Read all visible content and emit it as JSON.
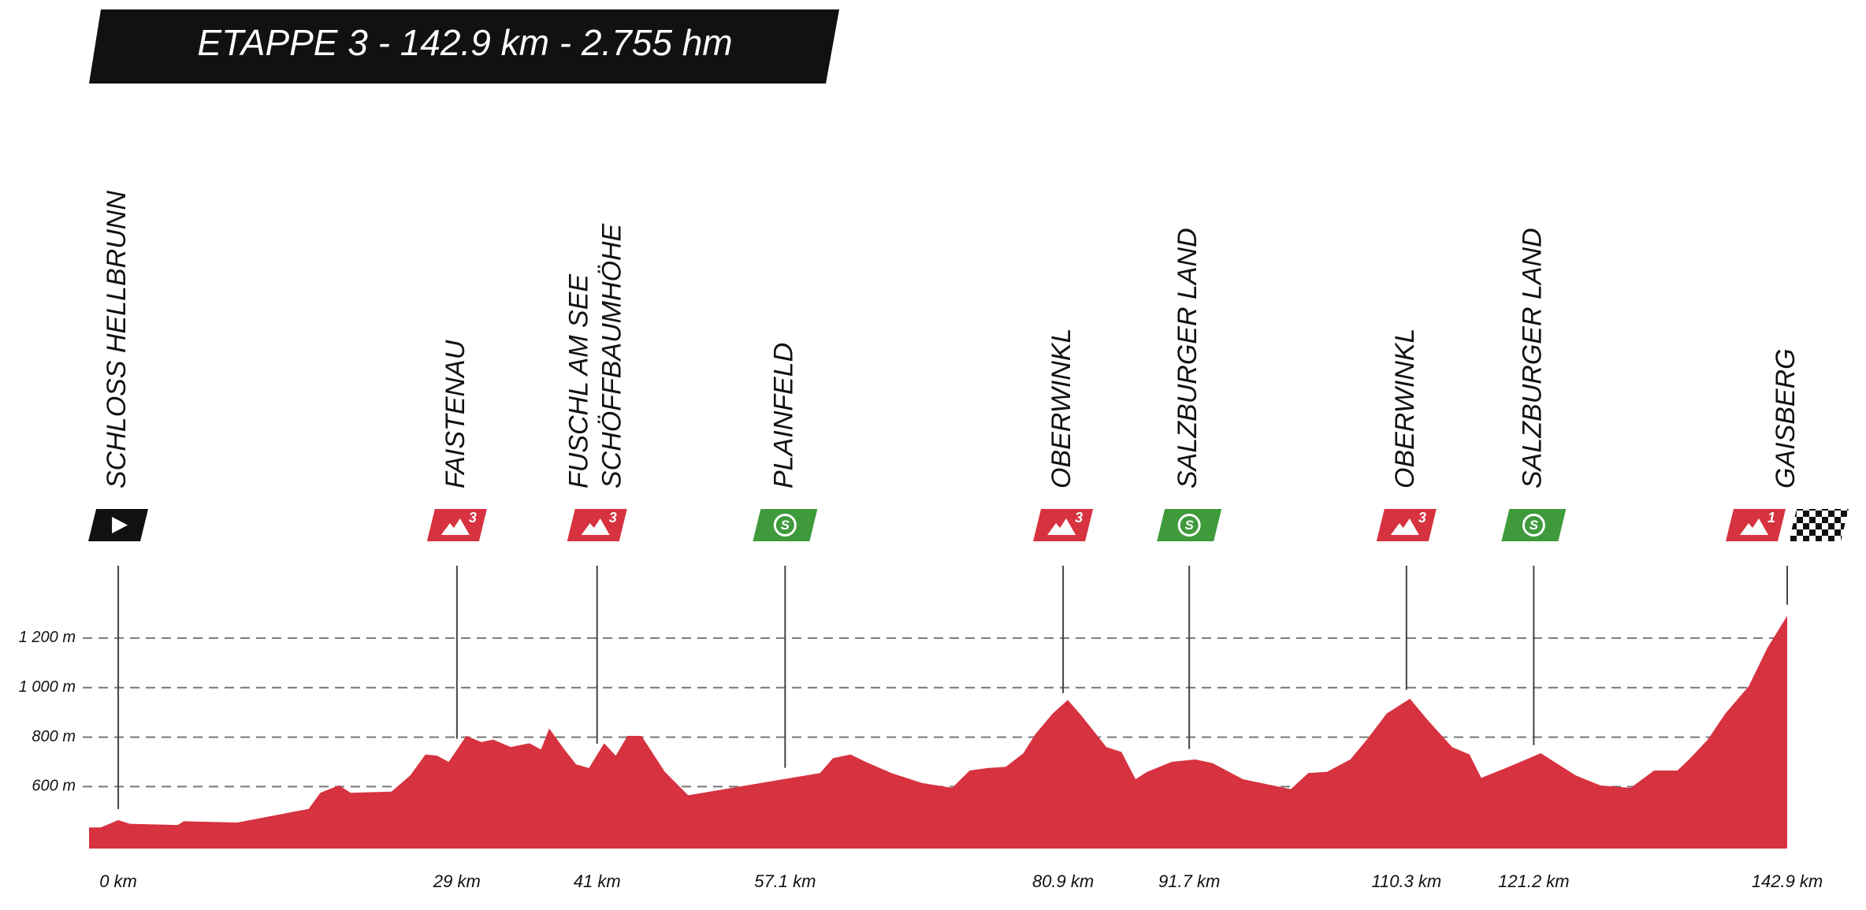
{
  "chart_data": {
    "type": "area",
    "title": "ETAPPE 3 - 142.9 km - 2.755 hm",
    "color": "#d7323f",
    "grid": true,
    "xlim": [
      -2.5,
      142.9
    ],
    "ylim": [
      350,
      1400
    ],
    "yticks": [
      {
        "value": 600,
        "label": "600 m"
      },
      {
        "value": 800,
        "label": "800 m"
      },
      {
        "value": 1000,
        "label": "1 000 m"
      },
      {
        "value": 1200,
        "label": "1 200 m"
      }
    ],
    "x": [
      -2.5,
      -1.5,
      0,
      1,
      5.1,
      5.6,
      10.2,
      16.3,
      17.3,
      18.9,
      19.9,
      23.4,
      25,
      26.3,
      27.3,
      28.3,
      29.8,
      31.1,
      32.1,
      33.6,
      35.2,
      36.2,
      36.9,
      38.2,
      39.2,
      40.3,
      41.6,
      42.6,
      43.6,
      44.8,
      46.8,
      48.8,
      60.1,
      61.2,
      62.7,
      64,
      66.2,
      68.8,
      71.4,
      72.9,
      74.4,
      76,
      77.5,
      78.5,
      80,
      81.3,
      82.5,
      84.6,
      85.9,
      87.1,
      88.1,
      90.2,
      92.2,
      93.7,
      96.3,
      98.3,
      100.4,
      101.9,
      103.5,
      105.5,
      107,
      108.6,
      110.6,
      112.1,
      114.2,
      115.7,
      116.7,
      118.8,
      121.8,
      123.3,
      124.8,
      126.9,
      129.5,
      131.5,
      133.5,
      134.5,
      136.1,
      137.6,
      139.6,
      141.2,
      142.9
    ],
    "values": [
      435,
      435,
      465,
      450,
      445,
      460,
      455,
      510,
      575,
      605,
      575,
      580,
      645,
      730,
      725,
      700,
      805,
      780,
      790,
      760,
      775,
      750,
      835,
      750,
      690,
      675,
      775,
      725,
      805,
      805,
      660,
      565,
      655,
      715,
      730,
      700,
      655,
      615,
      595,
      665,
      675,
      680,
      735,
      810,
      895,
      950,
      885,
      760,
      740,
      630,
      660,
      700,
      710,
      695,
      630,
      610,
      590,
      655,
      660,
      710,
      795,
      895,
      955,
      870,
      760,
      730,
      635,
      675,
      735,
      690,
      645,
      605,
      595,
      665,
      665,
      710,
      790,
      895,
      1005,
      1160,
      1290
    ],
    "waypoints": [
      {
        "name": [
          "SCHLOSS HELLBRUNN"
        ],
        "km": {
          "value": 0,
          "label": "0 km"
        },
        "badges": [
          {
            "type": "start"
          }
        ]
      },
      {
        "name": [
          "FAISTENAU"
        ],
        "km": {
          "value": 29,
          "label": "29 km"
        },
        "badges": [
          {
            "type": "kom",
            "text": "3"
          }
        ]
      },
      {
        "name": [
          "FUSCHL AM SEE",
          "SCHÖFFBAUMHÖHE"
        ],
        "km": {
          "value": 41,
          "label": "41 km"
        },
        "badges": [
          {
            "type": "kom",
            "text": "3"
          }
        ]
      },
      {
        "name": [
          "PLAINFELD"
        ],
        "km": {
          "value": 57.1,
          "label": "57.1 km"
        },
        "badges": [
          {
            "type": "sprint",
            "text": "S"
          }
        ]
      },
      {
        "name": [
          "OBERWINKL"
        ],
        "km": {
          "value": 80.9,
          "label": "80.9 km"
        },
        "badges": [
          {
            "type": "kom",
            "text": "3"
          }
        ]
      },
      {
        "name": [
          "SALZBURGER LAND"
        ],
        "km": {
          "value": 91.7,
          "label": "91.7 km"
        },
        "badges": [
          {
            "type": "sprint",
            "text": "S"
          }
        ]
      },
      {
        "name": [
          "OBERWINKL"
        ],
        "km": {
          "value": 110.3,
          "label": "110.3 km"
        },
        "badges": [
          {
            "type": "kom",
            "text": "3"
          }
        ]
      },
      {
        "name": [
          "SALZBURGER LAND"
        ],
        "km": {
          "value": 121.2,
          "label": "121.2 km"
        },
        "badges": [
          {
            "type": "sprint",
            "text": "S"
          }
        ]
      },
      {
        "name": [
          "GAISBERG"
        ],
        "km": {
          "value": 142.9,
          "label": "142.9 km"
        },
        "badges": [
          {
            "type": "kom",
            "text": "1"
          },
          {
            "type": "finish"
          }
        ]
      }
    ]
  }
}
